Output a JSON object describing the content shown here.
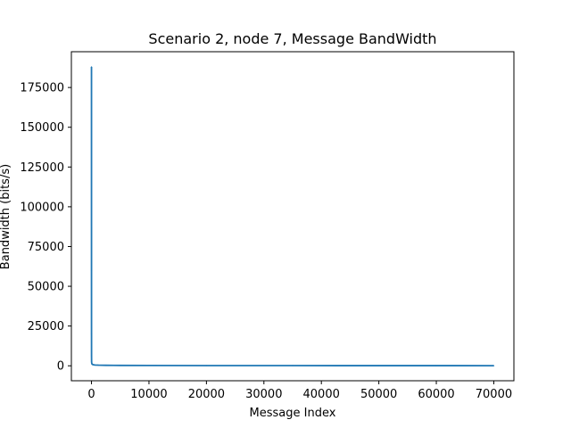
{
  "chart_data": {
    "type": "line",
    "title": "Scenario 2, node 7, Message BandWidth",
    "xlabel": "Message Index",
    "ylabel": "Bandwidth (bits/s)",
    "xlim": [
      -3500,
      73500
    ],
    "ylim": [
      -9400,
      197500
    ],
    "xticks": [
      0,
      10000,
      20000,
      30000,
      40000,
      50000,
      60000,
      70000
    ],
    "yticks": [
      0,
      25000,
      50000,
      75000,
      100000,
      125000,
      150000,
      175000
    ],
    "grid": false,
    "series": [
      {
        "name": "bandwidth",
        "color": "#1f77b4",
        "x": [
          0,
          2,
          5,
          10,
          20,
          40,
          80,
          150,
          300,
          600,
          1200,
          2500,
          5000,
          10000,
          20000,
          35000,
          50000,
          60000,
          70000
        ],
        "y": [
          188000,
          60000,
          20000,
          6000,
          2500,
          1800,
          1200,
          900,
          700,
          500,
          400,
          300,
          250,
          200,
          150,
          120,
          100,
          90,
          80
        ]
      }
    ]
  }
}
